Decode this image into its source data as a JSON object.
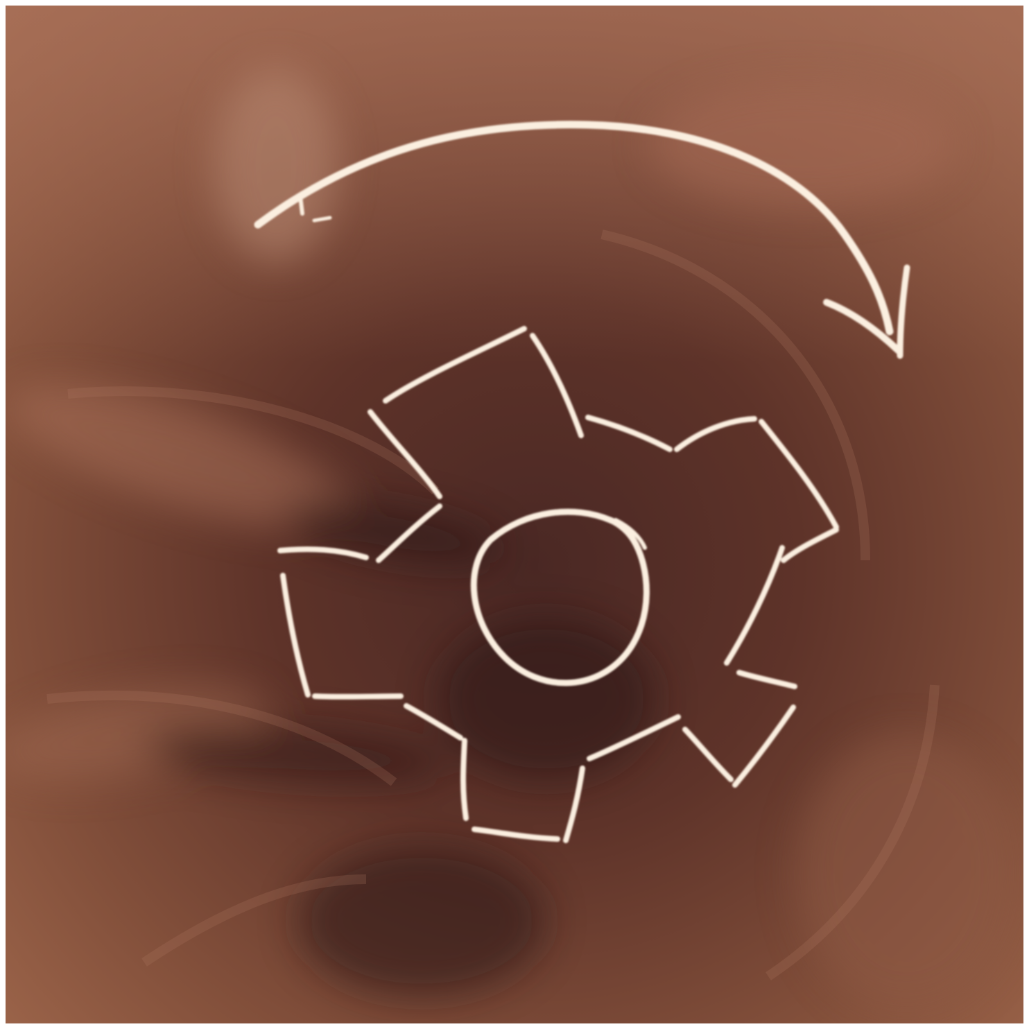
{
  "scene": {
    "subject": "gear-with-rotation-arrow",
    "icons": [
      "gear-icon",
      "curved-arrow-icon"
    ],
    "colors": {
      "board_light": "#a0644a",
      "board_mid": "#7a4535",
      "board_dark": "#3a1f1c",
      "chalk": "#fbefe0",
      "frame": "#ffffff"
    }
  }
}
